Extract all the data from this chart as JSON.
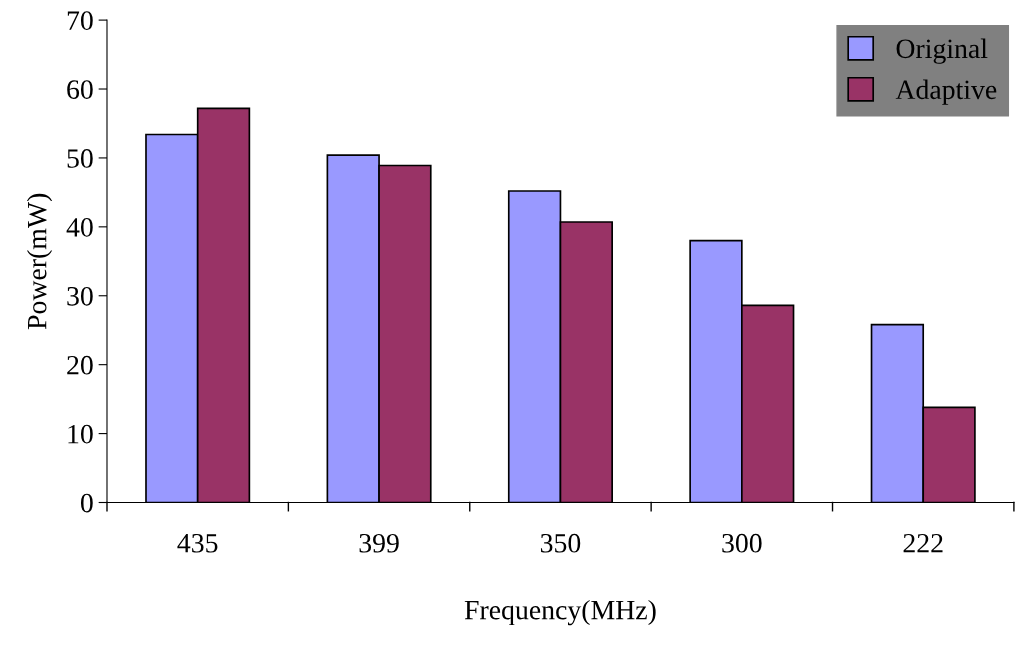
{
  "chart_data": {
    "type": "bar",
    "xlabel": "Frequency(MHz)",
    "ylabel": "Power(mW)",
    "categories": [
      "435",
      "399",
      "350",
      "300",
      "222"
    ],
    "series": [
      {
        "name": "Original",
        "color": "#9999ff",
        "values": [
          53.4,
          50.4,
          45.2,
          38.0,
          25.8
        ]
      },
      {
        "name": "Adaptive",
        "color": "#993366",
        "values": [
          57.2,
          48.9,
          40.7,
          28.6,
          13.8
        ]
      }
    ],
    "ylim": [
      0,
      70
    ],
    "yticks": [
      0,
      10,
      20,
      30,
      40,
      50,
      60,
      70
    ],
    "grid": false,
    "legend": "top right"
  }
}
